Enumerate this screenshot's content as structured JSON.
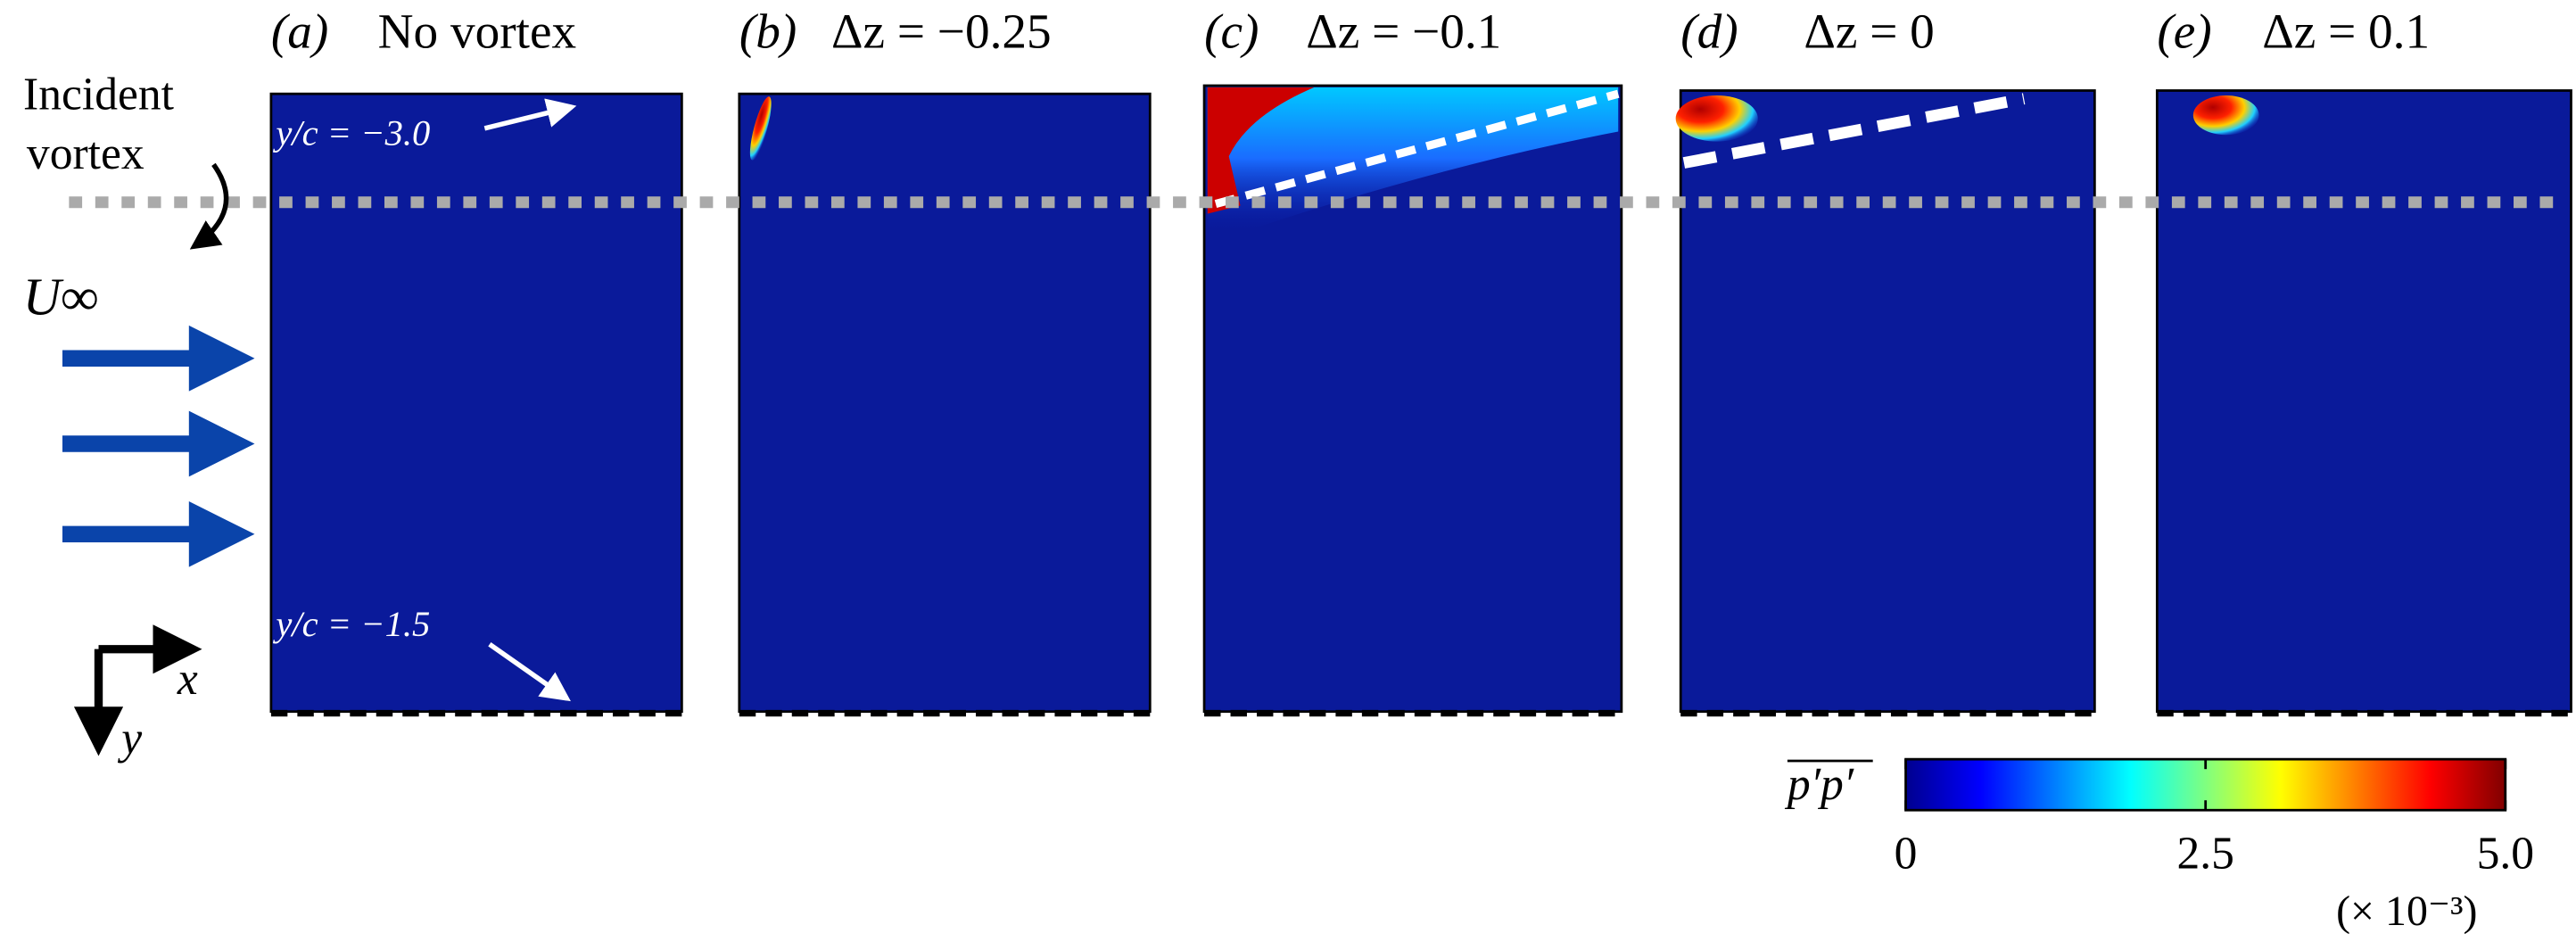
{
  "panels": [
    {
      "tag": "(a)",
      "title": "No vortex"
    },
    {
      "tag": "(b)",
      "title": "Δz = −0.25"
    },
    {
      "tag": "(c)",
      "title": "Δz = −0.1"
    },
    {
      "tag": "(d)",
      "title": "Δz = 0"
    },
    {
      "tag": "(e)",
      "title": "Δz = 0.1"
    }
  ],
  "annotations": {
    "incident_line1": "Incident",
    "incident_line2": "vortex",
    "freestream": "U∞",
    "top_station": "y/c = −3.0",
    "bottom_station": "y/c = −1.5",
    "x_axis": "x",
    "y_axis": "y"
  },
  "colorbar": {
    "label": "p′p′",
    "ticks": [
      0,
      2.5,
      {
        "value": 5,
        "label": "5.0"
      }
    ],
    "scale_note": "(× 10⁻³)"
  }
}
